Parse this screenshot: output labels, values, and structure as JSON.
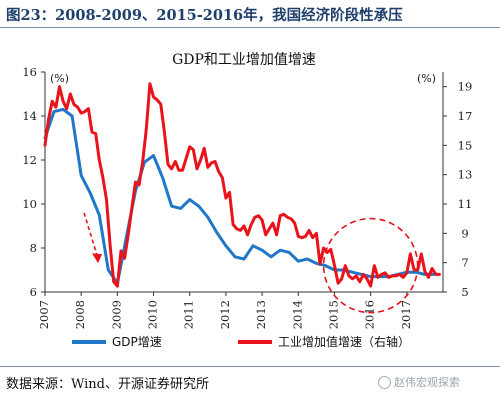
{
  "header": {
    "title": "图23：2008-2009、2015-2016年，我国经济阶段性承压"
  },
  "footer": {
    "source": "数据来源：Wind、开源证券研究所",
    "watermark": "赵伟宏观探索"
  },
  "colors": {
    "gdp": "#1f77c8",
    "industrial": "#e8131b",
    "annotation": "#e8131b",
    "axis": "#333333",
    "title": "#1f3f6b"
  },
  "chart_data": {
    "type": "line",
    "title": "GDP和工业增加值增速",
    "left_axis": {
      "unit": "(%)",
      "ylim": [
        6,
        16
      ],
      "ticks": [
        "6",
        "8",
        "10",
        "12",
        "14",
        "16"
      ]
    },
    "right_axis": {
      "unit": "(%)",
      "ylim": [
        5,
        20
      ],
      "ticks": [
        "5",
        "7",
        "9",
        "11",
        "13",
        "15",
        "17",
        "19"
      ]
    },
    "xlim": [
      2007.0,
      2018.0
    ],
    "x_ticks": [
      "2007",
      "2008",
      "2009",
      "2010",
      "2011",
      "2012",
      "2013",
      "2014",
      "2015",
      "2016",
      "2017"
    ],
    "grid": false,
    "legend_position": "bottom",
    "annotations": [
      {
        "kind": "dashed-arrow",
        "direction": "down",
        "near_x": 2008.3
      },
      {
        "kind": "dashed-circle",
        "center_x": 2016.0,
        "center_y": 7.2
      }
    ],
    "series": [
      {
        "name": "GDP增速",
        "axis": "left",
        "x": [
          2007.0,
          2007.25,
          2007.5,
          2007.75,
          2008.0,
          2008.25,
          2008.5,
          2008.75,
          2009.0,
          2009.25,
          2009.5,
          2009.75,
          2010.0,
          2010.25,
          2010.5,
          2010.75,
          2011.0,
          2011.25,
          2011.5,
          2011.75,
          2012.0,
          2012.25,
          2012.5,
          2012.75,
          2013.0,
          2013.25,
          2013.5,
          2013.75,
          2014.0,
          2014.25,
          2014.5,
          2014.75,
          2015.0,
          2015.25,
          2015.5,
          2015.75,
          2016.0,
          2016.25,
          2016.5,
          2016.75,
          2017.0,
          2017.25,
          2017.5,
          2017.75
        ],
        "y": [
          13.0,
          14.2,
          14.3,
          14.0,
          11.3,
          10.5,
          9.5,
          7.0,
          6.4,
          8.5,
          10.6,
          11.9,
          12.2,
          11.2,
          9.9,
          9.8,
          10.2,
          9.9,
          9.4,
          8.7,
          8.1,
          7.6,
          7.5,
          8.1,
          7.9,
          7.6,
          7.9,
          7.8,
          7.4,
          7.5,
          7.3,
          7.2,
          7.0,
          7.0,
          6.9,
          6.8,
          6.7,
          6.7,
          6.7,
          6.8,
          6.9,
          6.9,
          6.8,
          6.8
        ]
      },
      {
        "name": "工业增加值增速（右轴）",
        "axis": "right",
        "x": [
          2007.0,
          2007.1,
          2007.2,
          2007.3,
          2007.4,
          2007.5,
          2007.6,
          2007.7,
          2007.8,
          2007.9,
          2008.0,
          2008.1,
          2008.2,
          2008.3,
          2008.4,
          2008.5,
          2008.6,
          2008.7,
          2008.8,
          2008.9,
          2009.0,
          2009.1,
          2009.2,
          2009.3,
          2009.4,
          2009.5,
          2009.6,
          2009.7,
          2009.8,
          2009.9,
          2010.0,
          2010.1,
          2010.2,
          2010.3,
          2010.4,
          2010.5,
          2010.6,
          2010.7,
          2010.8,
          2010.9,
          2011.0,
          2011.1,
          2011.2,
          2011.3,
          2011.4,
          2011.5,
          2011.6,
          2011.7,
          2011.8,
          2011.9,
          2012.0,
          2012.1,
          2012.2,
          2012.3,
          2012.4,
          2012.5,
          2012.6,
          2012.7,
          2012.8,
          2012.9,
          2013.0,
          2013.1,
          2013.2,
          2013.3,
          2013.4,
          2013.5,
          2013.6,
          2013.7,
          2013.8,
          2013.9,
          2014.0,
          2014.1,
          2014.2,
          2014.3,
          2014.4,
          2014.5,
          2014.6,
          2014.7,
          2014.8,
          2014.9,
          2015.0,
          2015.1,
          2015.2,
          2015.3,
          2015.4,
          2015.5,
          2015.6,
          2015.7,
          2015.8,
          2015.9,
          2016.0,
          2016.1,
          2016.2,
          2016.3,
          2016.4,
          2016.5,
          2016.6,
          2016.7,
          2016.8,
          2016.9,
          2017.0,
          2017.1,
          2017.2,
          2017.3,
          2017.4,
          2017.5,
          2017.6,
          2017.7,
          2017.8,
          2017.9
        ],
        "y": [
          15.0,
          16.8,
          18.0,
          17.6,
          19.0,
          18.0,
          17.5,
          18.5,
          17.8,
          17.6,
          17.2,
          17.3,
          17.5,
          15.9,
          15.8,
          14.0,
          12.8,
          11.3,
          8.2,
          5.7,
          5.4,
          7.8,
          7.3,
          8.9,
          10.7,
          12.5,
          12.3,
          13.9,
          16.1,
          19.2,
          18.3,
          18.1,
          17.8,
          15.9,
          13.7,
          13.4,
          13.9,
          13.3,
          13.3,
          14.1,
          14.9,
          14.7,
          13.4,
          14.0,
          14.8,
          13.5,
          13.8,
          13.9,
          13.2,
          12.8,
          11.4,
          11.8,
          9.6,
          9.3,
          9.2,
          9.5,
          8.9,
          9.6,
          10.1,
          10.2,
          9.9,
          8.9,
          9.3,
          9.7,
          8.9,
          10.2,
          10.3,
          10.1,
          10.0,
          9.7,
          8.8,
          8.7,
          8.8,
          9.2,
          8.7,
          9.0,
          6.9,
          8.0,
          7.7,
          7.9,
          6.8,
          5.6,
          5.9,
          6.8,
          6.1,
          5.9,
          6.1,
          5.7,
          6.2,
          5.9,
          5.4,
          6.8,
          6.0,
          6.2,
          6.3,
          6.0,
          6.1,
          6.1,
          6.2,
          6.0,
          6.3,
          7.6,
          6.5,
          6.5,
          7.6,
          6.4,
          6.0,
          6.6,
          6.2,
          6.2
        ]
      }
    ]
  }
}
